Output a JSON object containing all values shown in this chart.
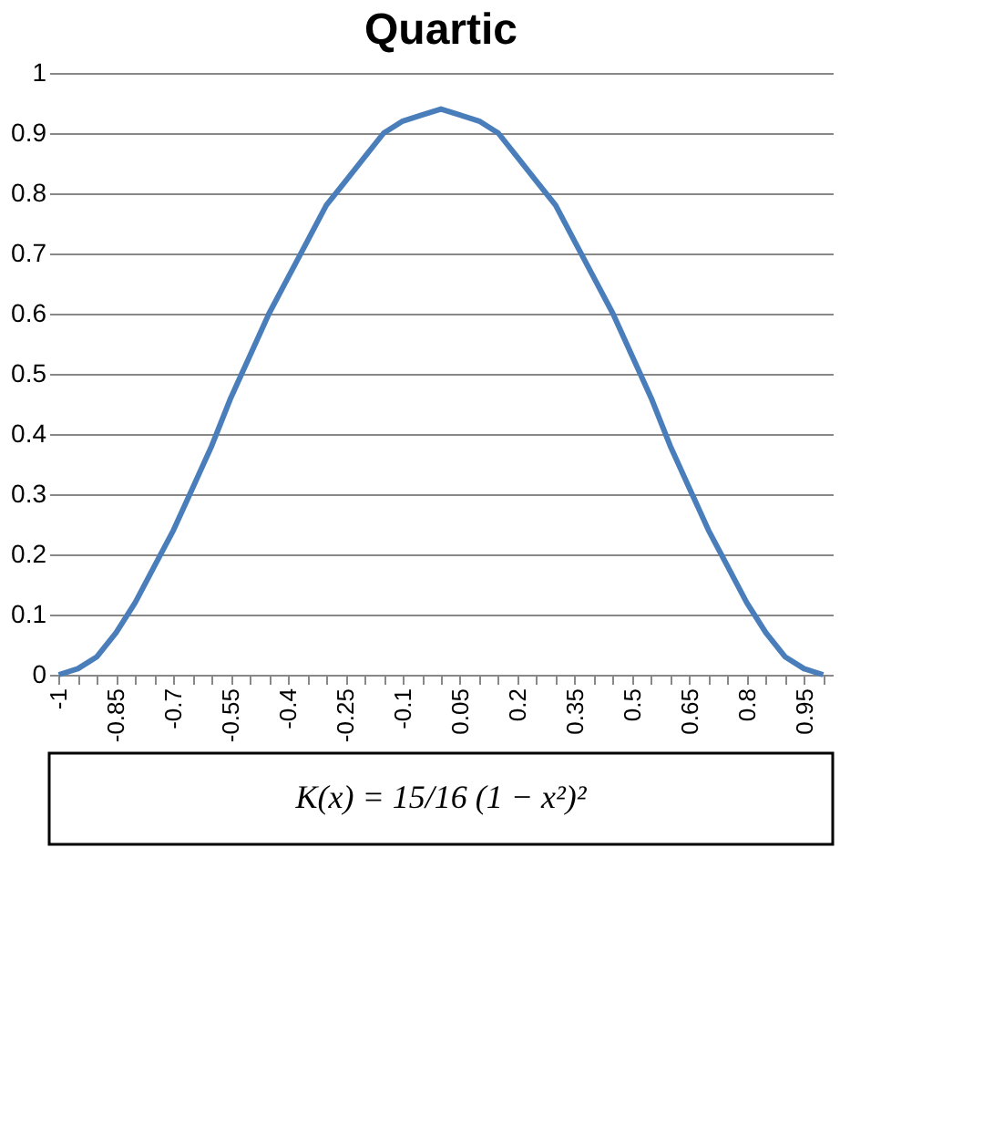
{
  "chart_data": {
    "type": "line",
    "title": "Quartic",
    "categories": [
      "-1",
      null,
      null,
      "-0.85",
      null,
      null,
      "-0.7",
      null,
      null,
      "-0.55",
      null,
      null,
      "-0.4",
      null,
      null,
      "-0.25",
      null,
      null,
      "-0.1",
      null,
      null,
      "0.05",
      null,
      null,
      "0.2",
      null,
      null,
      "0.35",
      null,
      null,
      "0.5",
      null,
      null,
      "0.65",
      null,
      null,
      "0.8",
      null,
      null,
      "0.95",
      null
    ],
    "series": [
      {
        "color": "#4a7ebb",
        "values": [
          0,
          0.01,
          0.03,
          0.07,
          0.12,
          0.18,
          0.24,
          0.31,
          0.38,
          0.46,
          0.53,
          0.6,
          0.66,
          0.72,
          0.78,
          0.82,
          0.86,
          0.9,
          0.92,
          0.93,
          0.94,
          0.93,
          0.92,
          0.9,
          0.86,
          0.82,
          0.78,
          0.72,
          0.66,
          0.6,
          0.53,
          0.46,
          0.38,
          0.31,
          0.24,
          0.18,
          0.12,
          0.07,
          0.03,
          0.01,
          0
        ]
      }
    ],
    "ylim": [
      0,
      1
    ],
    "yticks": [
      0,
      0.1,
      0.2,
      0.3,
      0.4,
      0.5,
      0.6,
      0.7,
      0.8,
      0.9,
      1
    ],
    "grid": "y",
    "marker": "none",
    "line_style": "solid",
    "legend": false,
    "annotations": [
      "K(x) = 15/16 (1 − x²)²"
    ]
  }
}
